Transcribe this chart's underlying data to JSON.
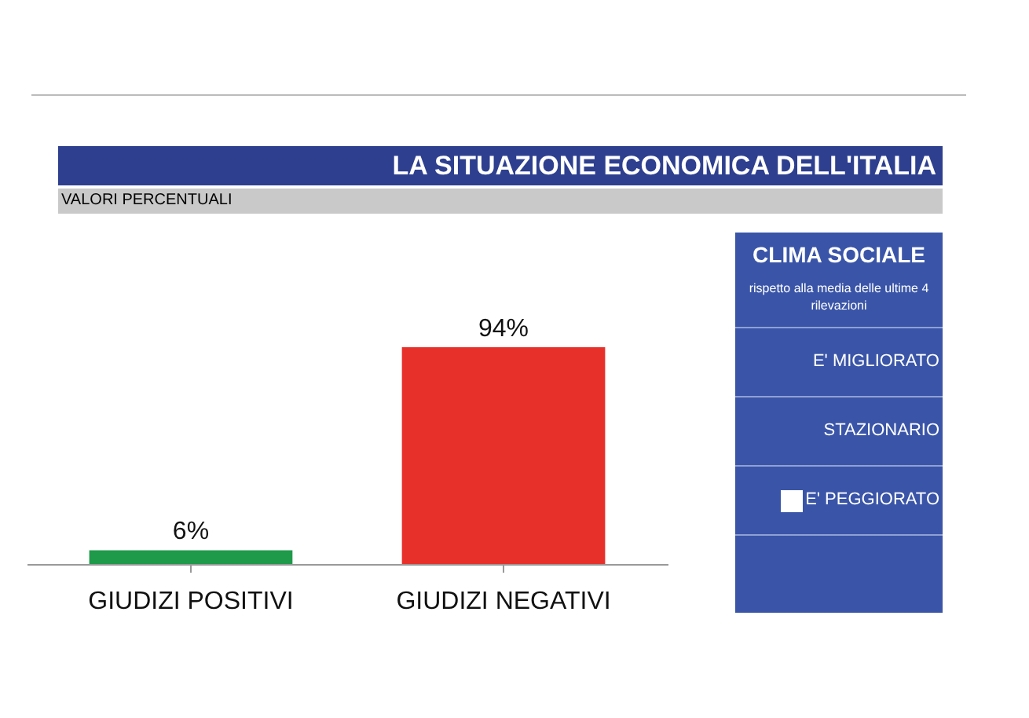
{
  "chart_data": {
    "type": "bar",
    "title": "LA SITUAZIONE ECONOMICA DELL'ITALIA",
    "subtitle": "VALORI PERCENTUALI",
    "categories": [
      "GIUDIZI POSITIVI",
      "GIUDIZI NEGATIVI"
    ],
    "values": [
      6,
      94
    ],
    "colors": [
      "#1e9a4a",
      "#e8302a"
    ],
    "value_labels": [
      "6%",
      "94%"
    ],
    "annotations": [
      "CLIMA SOCIALE",
      "rispetto alla media delle ultime 4 rilevazioni",
      "E' MIGLIORATO",
      "STAZIONARIO",
      "E' PEGGIORATO"
    ]
  }
}
